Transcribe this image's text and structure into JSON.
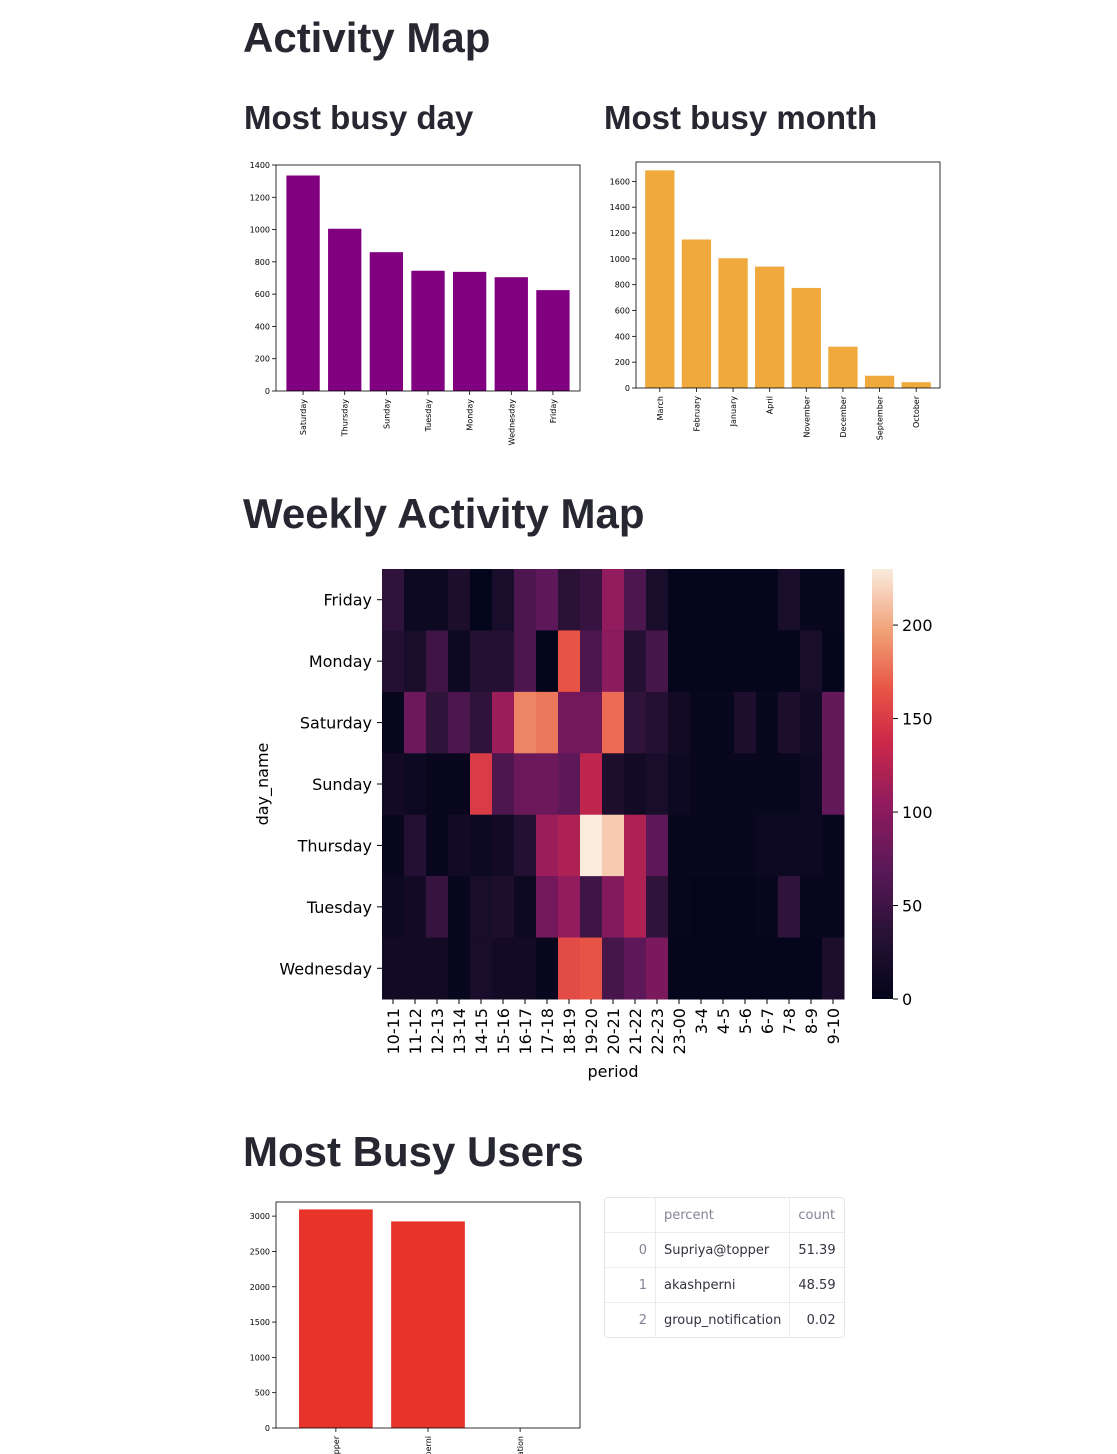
{
  "page": {
    "title": "Activity Map",
    "busy_day_heading": "Most busy day",
    "busy_month_heading": "Most busy month",
    "weekly_heading": "Weekly Activity Map",
    "users_heading": "Most Busy Users"
  },
  "chart_data": [
    {
      "id": "busy_day",
      "type": "bar",
      "categories": [
        "Saturday",
        "Thursday",
        "Sunday",
        "Tuesday",
        "Monday",
        "Wednesday",
        "Friday"
      ],
      "values": [
        1335,
        1005,
        860,
        745,
        738,
        705,
        625
      ],
      "ylim": [
        0,
        1400
      ],
      "yticks": [
        0,
        200,
        400,
        600,
        800,
        1000,
        1200,
        1400
      ],
      "color": "#800080"
    },
    {
      "id": "busy_month",
      "type": "bar",
      "categories": [
        "March",
        "February",
        "January",
        "April",
        "November",
        "December",
        "September",
        "October"
      ],
      "values": [
        1685,
        1150,
        1005,
        940,
        775,
        320,
        95,
        45
      ],
      "ylim": [
        0,
        1750
      ],
      "yticks": [
        0,
        200,
        400,
        600,
        800,
        1000,
        1200,
        1400,
        1600
      ],
      "color": "#f0a93c"
    },
    {
      "id": "weekly_activity",
      "type": "heatmap",
      "xlabel": "period",
      "ylabel": "day_name",
      "x": [
        "10-11",
        "11-12",
        "12-13",
        "13-14",
        "14-15",
        "15-16",
        "16-17",
        "17-18",
        "18-19",
        "19-20",
        "20-21",
        "21-22",
        "22-23",
        "23-00",
        "3-4",
        "4-5",
        "5-6",
        "6-7",
        "7-8",
        "8-9",
        "9-10"
      ],
      "y": [
        "Friday",
        "Monday",
        "Saturday",
        "Sunday",
        "Thursday",
        "Tuesday",
        "Wednesday"
      ],
      "values": [
        [
          40,
          10,
          10,
          25,
          0,
          20,
          60,
          70,
          35,
          45,
          105,
          60,
          20,
          2,
          2,
          2,
          2,
          2,
          20,
          5,
          5
        ],
        [
          30,
          20,
          50,
          10,
          30,
          30,
          60,
          0,
          165,
          60,
          100,
          30,
          55,
          2,
          2,
          2,
          2,
          2,
          2,
          20,
          2
        ],
        [
          5,
          80,
          40,
          60,
          40,
          110,
          185,
          180,
          85,
          85,
          175,
          40,
          30,
          15,
          5,
          5,
          25,
          5,
          25,
          15,
          75
        ],
        [
          15,
          10,
          5,
          5,
          150,
          60,
          80,
          80,
          70,
          130,
          25,
          15,
          20,
          10,
          5,
          5,
          5,
          5,
          5,
          10,
          75
        ],
        [
          5,
          30,
          5,
          15,
          10,
          15,
          30,
          110,
          120,
          230,
          215,
          120,
          70,
          5,
          5,
          5,
          5,
          10,
          10,
          10,
          5
        ],
        [
          10,
          15,
          45,
          5,
          20,
          25,
          10,
          85,
          105,
          50,
          95,
          120,
          40,
          5,
          2,
          2,
          2,
          5,
          40,
          5,
          5
        ],
        [
          15,
          15,
          15,
          5,
          20,
          15,
          15,
          5,
          160,
          165,
          55,
          70,
          90,
          2,
          2,
          2,
          2,
          2,
          2,
          2,
          25
        ]
      ],
      "vmin": 0,
      "vmax": 230,
      "colorbar_ticks": [
        0,
        50,
        100,
        150,
        200
      ]
    },
    {
      "id": "busy_users",
      "type": "bar",
      "categories": [
        "Supriya@topper",
        "akashperni",
        "group_notification"
      ],
      "values": [
        3095,
        2925,
        1
      ],
      "ylim": [
        0,
        3200
      ],
      "yticks": [
        0,
        500,
        1000,
        1500,
        2000,
        2500,
        3000
      ],
      "color": "#e8332a"
    }
  ],
  "users_table": {
    "columns": [
      "",
      "percent",
      "count"
    ],
    "rows": [
      {
        "index": "0",
        "name": "Supriya@topper",
        "value": "51.39"
      },
      {
        "index": "1",
        "name": "akashperni",
        "value": "48.59"
      },
      {
        "index": "2",
        "name": "group_notification",
        "value": "0.02"
      }
    ]
  }
}
